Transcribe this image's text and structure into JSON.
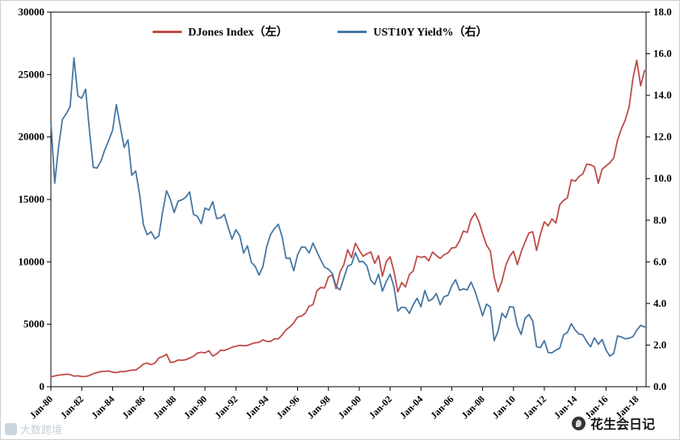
{
  "page": {
    "background": "#ffffff"
  },
  "watermarks": {
    "left_label": "大数跨境",
    "right_label": "花生会日记"
  },
  "chart_data": {
    "type": "line",
    "title": "",
    "legend_position": "top",
    "grid": false,
    "x_start": 1980,
    "x_step_years": 0.25,
    "x_axis": {
      "range": [
        1980,
        2018.6
      ],
      "tick_years": [
        1980,
        1982,
        1984,
        1986,
        1988,
        1990,
        1992,
        1994,
        1996,
        1998,
        2000,
        2002,
        2004,
        2006,
        2008,
        2010,
        2012,
        2014,
        2016,
        2018
      ],
      "tick_labels": [
        "Jan-80",
        "Jan-82",
        "Jan-84",
        "Jan-86",
        "Jan-88",
        "Jan-90",
        "Jan-92",
        "Jan-94",
        "Jan-96",
        "Jan-98",
        "Jan-00",
        "Jan-02",
        "Jan-04",
        "Jan-06",
        "Jan-08",
        "Jan-10",
        "Jan-12",
        "Jan-14",
        "Jan-16",
        "Jan-18"
      ]
    },
    "y_left": {
      "range": [
        0,
        30000
      ],
      "tick_step": 5000,
      "tick_labels": [
        "0",
        "5000",
        "10000",
        "15000",
        "20000",
        "25000",
        "30000"
      ]
    },
    "y_right": {
      "range": [
        0,
        18
      ],
      "tick_step": 2,
      "tick_labels": [
        "0.0",
        "2.0",
        "4.0",
        "6.0",
        "8.0",
        "10.0",
        "12.0",
        "14.0",
        "16.0",
        "18.0"
      ]
    },
    "series": [
      {
        "name": "DJones Index（左）",
        "axis": "left",
        "color": "#be4b48",
        "values": [
          785,
          868,
          932,
          964,
          1004,
          976,
          850,
          875,
          823,
          812,
          896,
          1047,
          1130,
          1222,
          1233,
          1259,
          1165,
          1132,
          1207,
          1212,
          1266,
          1335,
          1329,
          1547,
          1819,
          1893,
          1768,
          1896,
          2305,
          2419,
          2596,
          1939,
          1988,
          2142,
          2113,
          2169,
          2294,
          2440,
          2693,
          2753,
          2707,
          2881,
          2452,
          2634,
          2914,
          2907,
          3017,
          3169,
          3236,
          3319,
          3272,
          3301,
          3435,
          3517,
          3555,
          3754,
          3636,
          3625,
          3843,
          3834,
          4158,
          4556,
          4789,
          5117,
          5587,
          5655,
          5882,
          6448,
          6584,
          7673,
          7945,
          7908,
          8800,
          8952,
          7843,
          9181,
          9786,
          10971,
          10337,
          11497,
          10922,
          10448,
          10651,
          10788,
          9879,
          10502,
          8848,
          10022,
          10404,
          9243,
          7592,
          8342,
          7992,
          8985,
          9275,
          10454,
          10358,
          10435,
          10080,
          10783,
          10504,
          10275,
          10569,
          10718,
          11109,
          11150,
          11679,
          12463,
          12354,
          13409,
          13896,
          13265,
          12263,
          11350,
          10851,
          8776,
          7609,
          8447,
          9712,
          10428,
          10857,
          9774,
          10788,
          11578,
          12320,
          12414,
          10913,
          12218,
          13212,
          12880,
          13437,
          13104,
          14579,
          14910,
          15130,
          16577,
          16458,
          16827,
          17043,
          17823,
          17776,
          17620,
          16285,
          17425,
          17685,
          17930,
          18308,
          19763,
          20663,
          21350,
          22405,
          24719,
          26149,
          24103,
          25316
        ]
      },
      {
        "name": "UST10Y Yield%（右）",
        "axis": "right",
        "color": "#4677a3",
        "values": [
          12.75,
          9.78,
          11.51,
          12.84,
          13.12,
          13.47,
          15.8,
          13.98,
          13.86,
          14.3,
          12.34,
          10.54,
          10.51,
          10.85,
          11.38,
          11.83,
          12.32,
          13.56,
          12.52,
          11.5,
          11.86,
          10.16,
          10.37,
          9.26,
          7.78,
          7.3,
          7.45,
          7.11,
          7.25,
          8.4,
          9.42,
          8.99,
          8.37,
          8.92,
          8.98,
          9.11,
          9.36,
          8.28,
          8.19,
          7.84,
          8.59,
          8.48,
          8.89,
          8.08,
          8.11,
          8.28,
          7.65,
          7.09,
          7.54,
          7.26,
          6.42,
          6.77,
          5.98,
          5.78,
          5.36,
          5.77,
          6.74,
          7.32,
          7.6,
          7.81,
          7.2,
          6.17,
          6.18,
          5.57,
          6.34,
          6.71,
          6.7,
          6.42,
          6.9,
          6.49,
          6.1,
          5.74,
          5.65,
          5.44,
          4.81,
          4.65,
          5.23,
          5.79,
          5.88,
          6.44,
          6.0,
          6.02,
          5.8,
          5.11,
          4.92,
          5.41,
          4.59,
          5.05,
          5.4,
          4.8,
          3.63,
          3.82,
          3.8,
          3.52,
          3.94,
          4.25,
          3.84,
          4.62,
          4.12,
          4.22,
          4.48,
          3.94,
          4.33,
          4.39,
          4.85,
          5.14,
          4.63,
          4.7,
          4.65,
          5.03,
          4.59,
          4.02,
          3.41,
          3.97,
          3.83,
          2.21,
          2.66,
          3.53,
          3.31,
          3.84,
          3.83,
          2.93,
          2.51,
          3.29,
          3.47,
          3.16,
          1.92,
          1.88,
          2.21,
          1.64,
          1.63,
          1.76,
          1.85,
          2.49,
          2.61,
          3.03,
          2.72,
          2.53,
          2.49,
          2.17,
          1.92,
          2.35,
          2.04,
          2.27,
          1.77,
          1.47,
          1.6,
          2.44,
          2.39,
          2.3,
          2.33,
          2.41,
          2.72,
          2.95,
          2.87
        ]
      }
    ]
  }
}
